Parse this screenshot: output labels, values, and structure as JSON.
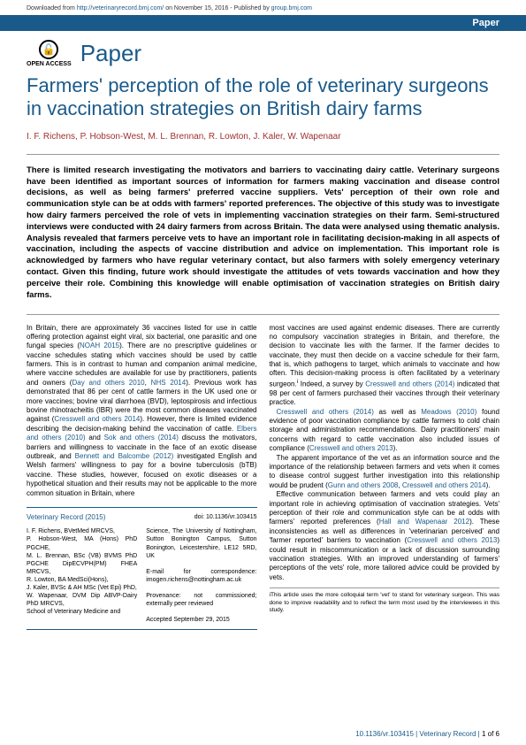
{
  "topbar": {
    "prefix": "Downloaded from ",
    "url": "http://veterinaryrecord.bmj.com/",
    "mid": " on November 15, 2016 - Published by ",
    "publisher": "group.bmj.com"
  },
  "ribbon": "Paper",
  "openAccess": "OPEN ACCESS",
  "sectionLabel": "Paper",
  "title": "Farmers' perception of the role of veterinary surgeons in vaccination strategies on British dairy farms",
  "authors": "I. F. Richens, P. Hobson-West, M. L. Brennan, R. Lowton, J. Kaler, W. Wapenaar",
  "abstract": "There is limited research investigating the motivators and barriers to vaccinating dairy cattle. Veterinary surgeons have been identified as important sources of information for farmers making vaccination and disease control decisions, as well as being farmers' preferred vaccine suppliers. Vets' perception of their own role and communication style can be at odds with farmers' reported preferences. The objective of this study was to investigate how dairy farmers perceived the role of vets in implementing vaccination strategies on their farm. Semi-structured interviews were conducted with 24 dairy farmers from across Britain. The data were analysed using thematic analysis. Analysis revealed that farmers perceive vets to have an important role in facilitating decision-making in all aspects of vaccination, including the aspects of vaccine distribution and advice on implementation. This important role is acknowledged by farmers who have regular veterinary contact, but also farmers with solely emergency veterinary contact. Given this finding, future work should investigate the attitudes of vets towards vaccination and how they perceive their role. Combining this knowledge will enable optimisation of vaccination strategies on British dairy farms.",
  "leftCol": {
    "p1a": "In Britain, there are approximately 36 vaccines listed for use in cattle offering protection against eight viral, six bacterial, one parasitic and one fungal species (",
    "c1": "NOAH 2015",
    "p1b": "). There are no prescriptive guidelines or vaccine schedules stating which vaccines should be used by cattle farmers. This is in contrast to human and companion animal medicine, where vaccine schedules are available for use by practitioners, patients and owners (",
    "c2": "Day and others 2010",
    "p1c": ", ",
    "c3": "NHS 2014",
    "p1d": "). Previous work has demonstrated that 86 per cent of cattle farmers in the UK used one or more vaccines; bovine viral diarrhoea (BVD), leptospirosis and infectious bovine rhinotracheitis (IBR) were the most common diseases vaccinated against (",
    "c4": "Cresswell and others 2014",
    "p1e": "). However, there is limited evidence describing the decision-making behind the vaccination of cattle. ",
    "c5": "Elbers and others (2010)",
    "p1f": " and ",
    "c6": "Sok and others (2014)",
    "p1g": " discuss the motivators, barriers and willingness to vaccinate in the face of an exotic disease outbreak, and ",
    "c7": "Bennett and Balcombe (2012)",
    "p1h": " investigated English and Welsh farmers' willingness to pay for a bovine tuberculosis (bTB) vaccine. These studies, however, focused on exotic diseases or a hypothetical situation and their results may not be applicable to the more common situation in Britain, where"
  },
  "rightCol": {
    "p1a": "most vaccines are used against endemic diseases. There are currently no compulsory vaccination strategies in Britain, and therefore, the decision to vaccinate lies with the farmer. If the farmer decides to vaccinate, they must then decide on a vaccine schedule for their farm, that is, which pathogens to target, which animals to vaccinate and how often. This decision-making process is often facilitated by a veterinary surgeon.",
    "sup": "i",
    "p1b": " Indeed, a survey by ",
    "c1": "Cresswell and others (2014)",
    "p1c": " indicated that 98 per cent of farmers purchased their vaccines through their veterinary practice.",
    "p2a": "",
    "c2": "Cresswell and others (2014)",
    "p2b": " as well as ",
    "c3": "Meadows (2010)",
    "p2c": " found evidence of poor vaccination compliance by cattle farmers to cold chain storage and administration recommendations. Dairy practitioners' main concerns with regard to cattle vaccination also included issues of compliance (",
    "c4": "Cresswell and others 2013",
    "p2d": ").",
    "p3a": "The apparent importance of the vet as an information source and the importance of the relationship between farmers and vets when it comes to disease control suggest further investigation into this relationship would be prudent (",
    "c5": "Gunn and others 2008",
    "p3b": ", ",
    "c6": "Cresswell and others 2014",
    "p3c": ").",
    "p4a": "Effective communication between farmers and vets could play an important role in achieving optimisation of vaccination strategies. Vets' perception of their role and communication style can be at odds with farmers' reported preferences (",
    "c7": "Hall and Wapenaar 2012",
    "p4b": "). These inconsistencies as well as differences in 'veterinarian perceived' and 'farmer reported' barriers to vaccination (",
    "c8": "Cresswell and others 2013",
    "p4c": ") could result in miscommunication or a lack of discussion surrounding vaccination strategies. With an improved understanding of farmers' perceptions of the vets' role, more tailored advice could be provided by vets."
  },
  "infobox": {
    "journal": "Veterinary Record (2015)",
    "doi": "doi: 10.1136/vr.103415",
    "left": "I. F. Richens, BVetMed MRCVS,\nP. Hobson-West, MA (Hons) PhD PGCHE,\nM. L. Brennan, BSc (VB) BVMS PhD PGCHE DipECVPH(PM) FHEA MRCVS,\nR. Lowton, BA MedSci(Hons),\nJ. Kaler, BVSc & AH MSc (Vet Epi) PhD,\nW. Wapenaar, DVM Dip ABVP-Dairy PhD MRCVS,\nSchool of Veterinary Medicine and",
    "right": "Science, The University of Nottingham, Sutton Bonington Campus, Sutton Bonington, Leicestershire, LE12 5RD, UK\n\nE-mail for correspondence: imogen.richens@nottingham.ac.uk\n\nProvenance: not commissioned; externally peer reviewed\n\nAccepted September 29, 2015"
  },
  "footnote": "iThis article uses the more colloquial term 'vet' to stand for veterinary surgeon. This was done to improve readability and to reflect the term most used by the interviewees in this study.",
  "footer": {
    "doi": "10.1136/vr.103415 | Veterinary Record | ",
    "page": "1 of 6"
  }
}
